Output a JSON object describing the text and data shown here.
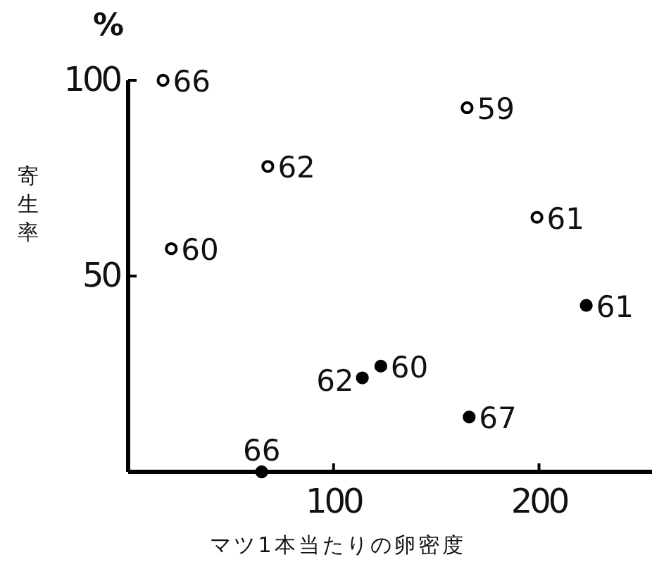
{
  "chart_data": {
    "type": "scatter",
    "xlabel": "マツ1本当たりの卵密度",
    "ylabel": "寄生率",
    "annotations": [
      "%",
      {
        "text": "66",
        "x": 17,
        "y": 100
      },
      {
        "text": "62",
        "x": 68,
        "y": 78
      },
      {
        "text": "60",
        "x": 21,
        "y": 57
      },
      {
        "text": "59",
        "x": 165,
        "y": 93
      },
      {
        "text": "61",
        "x": 199,
        "y": 65
      },
      {
        "text": "61",
        "x": 223,
        "y": 42.5
      },
      {
        "text": "62",
        "x": 114,
        "y": 24
      },
      {
        "text": "60",
        "x": 123,
        "y": 27
      },
      {
        "text": "67",
        "x": 166,
        "y": 14
      },
      {
        "text": "66",
        "x": 65,
        "y": 0
      }
    ],
    "xlim": [
      0,
      255
    ],
    "xticks": [
      100,
      200
    ],
    "ylim": [
      0,
      100
    ],
    "yticks": [
      50,
      100
    ],
    "grid": false,
    "marker": "circle",
    "series": [
      {
        "color": "#ffffff",
        "x": [
          17,
          68,
          21,
          165,
          199
        ],
        "values": [
          100,
          78,
          57,
          93,
          65
        ]
      },
      {
        "color": "#000000",
        "x": [
          223,
          114,
          123,
          166,
          65
        ],
        "values": [
          42.5,
          24,
          27,
          14,
          0
        ]
      }
    ]
  }
}
